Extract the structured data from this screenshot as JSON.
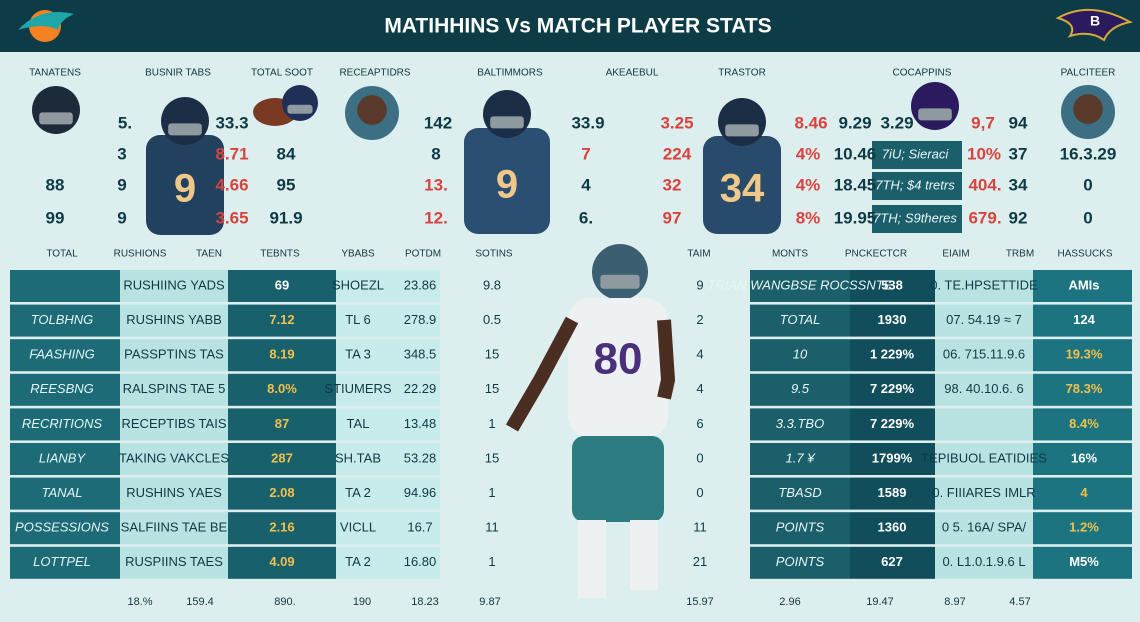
{
  "header": {
    "title": "MATIHHINS Vs MATCH PLAYER STATS"
  },
  "top": {
    "headers": [
      "TANATENS",
      "BUSNIR TABS",
      "TOTAL SOOT",
      "RECEAPTIDRS",
      "BALTIMMORS",
      "AKEAEBUL",
      "TRASTOR",
      "COCAPPINS",
      "PALCITEER"
    ],
    "rows": [
      [
        "5.",
        "33.3",
        "142",
        "33.9",
        "3.25",
        "8.46",
        "9.29",
        "3.29",
        "9,7",
        "94"
      ],
      [
        "3",
        "8.71",
        "84",
        "8",
        "7",
        "224",
        "4%",
        "10.46",
        "7iU;  Sieraci",
        "10%",
        "37",
        "16.3.29"
      ],
      [
        "88",
        "9",
        "4.66",
        "95",
        "13.",
        "4",
        "32",
        "4%",
        "18.45",
        "7TH;  $4 tretrs",
        "404.",
        "34",
        "0"
      ],
      [
        "99",
        "9",
        "3.65",
        "91.9",
        "12.",
        "6.",
        "97",
        "8%",
        "19.95",
        "7TH;  S9theres",
        "679.",
        "92",
        "0"
      ]
    ]
  },
  "players": [
    {
      "number": "9"
    },
    {
      "number": "9"
    },
    {
      "number": "34"
    },
    {
      "number": "80"
    }
  ],
  "middle_headers": [
    "TOTAL",
    "RUSHIONS",
    "TAEN",
    "TEBNTS",
    "YBABS",
    "POTDM",
    "SOTINS",
    "TAIM",
    "MONTS",
    "PNCKECTCR",
    "EIAIM",
    "TRBM",
    "HASSUCKS"
  ],
  "left_table": {
    "rows": [
      [
        "RUSHIING YADS",
        "69",
        "SHOEZL",
        "23.86",
        "9.8",
        "9"
      ],
      [
        "TOLBHNG",
        "RUSHINS YABB",
        "7.12",
        "TL 6",
        "278.9",
        "0.5",
        "2"
      ],
      [
        "FAASHING",
        "PASSPTINS TAS",
        "8.19",
        "TA 3",
        "348.5",
        "15",
        "4"
      ],
      [
        "REESBNG",
        "RALSPINS TAE 5",
        "8.0%",
        "STIUMERS",
        "22.29",
        "15",
        "4"
      ],
      [
        "RECRITIONS",
        "RECEPTIBS TAIS",
        "87",
        "TAL",
        "13.48",
        "1",
        "6"
      ],
      [
        "LIANBY",
        "TAKING VAKCLES",
        "287",
        "SH.TAB",
        "53.28",
        "15",
        "0"
      ],
      [
        "TANAL",
        "RUSHINS YAES",
        "2.08",
        "TA 2",
        "94.96",
        "1",
        "0"
      ],
      [
        "POSSESSIONS",
        "SALFIINS TAE BE",
        "2.16",
        "VICLL",
        "16.7",
        "11",
        "11"
      ],
      [
        "LOTTPEL",
        "RUSPIINS TAES",
        "4.09",
        "TA 2",
        "16.80",
        "1",
        "21"
      ]
    ]
  },
  "right_table": {
    "rows": [
      [
        "TRIAN WANGBSE ROCSSNTE",
        "538",
        "0. TE.HPSETTIDE",
        "AMIs"
      ],
      [
        "TOTAL",
        "1930",
        "07. 54.19 ≈ 7",
        "124"
      ],
      [
        "10",
        "1  229%",
        "06. 715.11.9.6",
        "19.3%"
      ],
      [
        "9.5",
        "7  229%",
        "98. 40.10.6. 6",
        "78.3%"
      ],
      [
        "3.3.TBO",
        "7  229%",
        "8.4%"
      ],
      [
        "1.7 ¥",
        "1799%",
        "TEPIBUOL EATIDIES",
        "16%"
      ],
      [
        "TBASD",
        "1589",
        "0. FIIIARES IMLR",
        "4"
      ],
      [
        "POINTS",
        "1360",
        "0 5. 16A/ SPA/",
        "1.2%"
      ],
      [
        "POINTS",
        "627",
        "0. L1.0.1.9.6 L",
        "M5%"
      ]
    ]
  },
  "footer": [
    "18.%",
    "159.4",
    "890.",
    "190",
    "18.23",
    "9.87",
    "15.97",
    "2.96",
    "19.47",
    "8.97",
    "4.57"
  ]
}
